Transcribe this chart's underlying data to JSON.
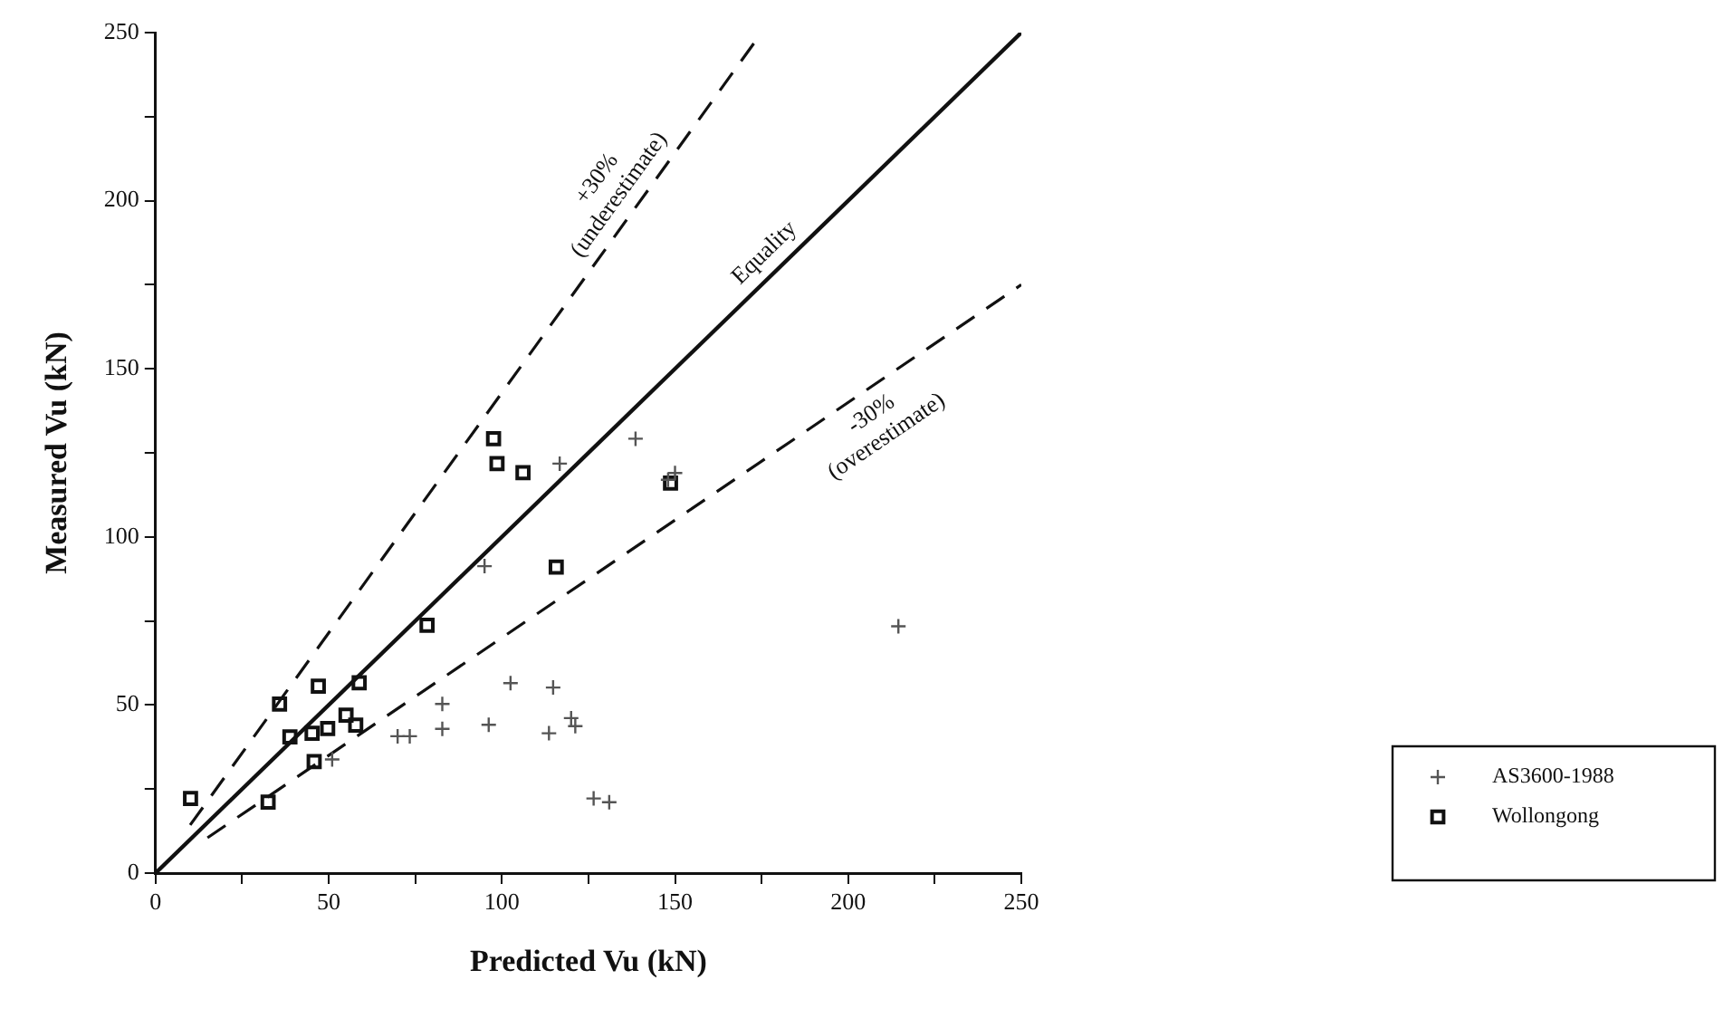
{
  "chart_data": {
    "type": "scatter",
    "xlabel": "Predicted Vu (kN)",
    "ylabel": "Measured Vu (kN)",
    "xlim": [
      0,
      250
    ],
    "ylim": [
      0,
      250
    ],
    "xticks": [
      0,
      {
        "value": 25,
        "label": null
      },
      50,
      {
        "value": 75,
        "label": null
      },
      100,
      {
        "value": 125,
        "label": null
      },
      150,
      {
        "value": 175,
        "label": null
      },
      200,
      {
        "value": 225,
        "label": null
      },
      250
    ],
    "yticks": [
      0,
      {
        "value": 25,
        "label": null
      },
      50,
      {
        "value": 75,
        "label": null
      },
      100,
      {
        "value": 125,
        "label": null
      },
      150,
      {
        "value": 175,
        "label": null
      },
      200,
      {
        "value": 225,
        "label": null
      },
      250
    ],
    "grid": false,
    "legend": "right",
    "series": [
      {
        "name": "AS3600-1988",
        "marker": "cross",
        "color": "#555555",
        "x": [
          51,
          69.9,
          73.4,
          82.8,
          82.8,
          95,
          96.2,
          102.5,
          113.6,
          114.8,
          116.7,
          120,
          121.2,
          126.5,
          131,
          138.6,
          148,
          150,
          214.5
        ],
        "values": [
          33.8,
          40.7,
          40.7,
          50.3,
          42.9,
          91.3,
          44.1,
          56.5,
          41.6,
          55.2,
          121.8,
          46.1,
          43.7,
          22.2,
          21.1,
          129.2,
          117,
          119,
          73.4
        ]
      },
      {
        "name": "Wollongong",
        "marker": "square",
        "color": "#111111",
        "x": [
          10.1,
          32.5,
          35.8,
          38.8,
          45.2,
          45.8,
          47,
          49.7,
          55,
          57.8,
          58.8,
          78.4,
          97.6,
          98.6,
          106.1,
          115.7,
          148.7
        ],
        "values": [
          22.2,
          21.1,
          50.3,
          40.5,
          41.6,
          33.2,
          55.6,
          43,
          47,
          44,
          56.6,
          73.7,
          129.2,
          121.8,
          119.1,
          91,
          116
        ]
      },
      {
        "name": "+30%\n(underestimate)",
        "type": "line",
        "marker": "none",
        "line_style": "dashed",
        "color": "#111111",
        "x": [
          10,
          175
        ],
        "values": [
          14.3,
          250
        ]
      },
      {
        "name": "Equality",
        "type": "line",
        "marker": "none",
        "line_style": "solid",
        "color": "#111111",
        "x": [
          0,
          250
        ],
        "values": [
          0,
          250
        ]
      },
      {
        "name": "-30%\n(overestimate)",
        "type": "line",
        "marker": "none",
        "line_style": "dashed",
        "color": "#111111",
        "x": [
          15,
          250
        ],
        "values": [
          10.5,
          175
        ]
      }
    ]
  }
}
